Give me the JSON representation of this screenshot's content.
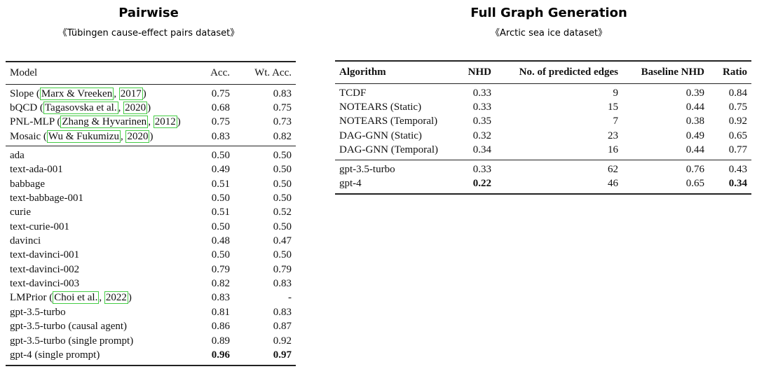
{
  "left": {
    "title": "Pairwise",
    "subtitle": "《Tübingen cause-effect pairs dataset》",
    "header": [
      "Model",
      "Acc.",
      "Wt. Acc."
    ],
    "header_bold": false,
    "groups": [
      [
        [
          [
            {
              "text": "Slope ("
            },
            {
              "text": "Marx & Vreeken",
              "cite": true
            },
            {
              "text": ", "
            },
            {
              "text": "2017",
              "cite": true
            },
            {
              "text": ")"
            }
          ],
          "0.75",
          "0.83"
        ],
        [
          [
            {
              "text": "bQCD ("
            },
            {
              "text": "Tagasovska et al.",
              "cite": true
            },
            {
              "text": ", "
            },
            {
              "text": "2020",
              "cite": true
            },
            {
              "text": ")"
            }
          ],
          "0.68",
          "0.75"
        ],
        [
          [
            {
              "text": "PNL-MLP ("
            },
            {
              "text": "Zhang & Hyvarinen",
              "cite": true
            },
            {
              "text": ", "
            },
            {
              "text": "2012",
              "cite": true
            },
            {
              "text": ")"
            }
          ],
          "0.75",
          "0.73"
        ],
        [
          [
            {
              "text": "Mosaic ("
            },
            {
              "text": "Wu & Fukumizu",
              "cite": true
            },
            {
              "text": ", "
            },
            {
              "text": "2020",
              "cite": true
            },
            {
              "text": ")"
            }
          ],
          "0.83",
          "0.82"
        ]
      ],
      [
        [
          "ada",
          "0.50",
          "0.50"
        ],
        [
          "text-ada-001",
          "0.49",
          "0.50"
        ],
        [
          "babbage",
          "0.51",
          "0.50"
        ],
        [
          "text-babbage-001",
          "0.50",
          "0.50"
        ],
        [
          "curie",
          "0.51",
          "0.52"
        ],
        [
          "text-curie-001",
          "0.50",
          "0.50"
        ],
        [
          "davinci",
          "0.48",
          "0.47"
        ],
        [
          "text-davinci-001",
          "0.50",
          "0.50"
        ],
        [
          "text-davinci-002",
          "0.79",
          "0.79"
        ],
        [
          "text-davinci-003",
          "0.82",
          "0.83"
        ],
        [
          [
            {
              "text": "LMPrior ("
            },
            {
              "text": "Choi et al.",
              "cite": true
            },
            {
              "text": ", "
            },
            {
              "text": "2022",
              "cite": true
            },
            {
              "text": ")"
            }
          ],
          "0.83",
          "-"
        ],
        [
          "gpt-3.5-turbo",
          "0.81",
          "0.83"
        ],
        [
          "gpt-3.5-turbo (causal agent)",
          "0.86",
          "0.87"
        ],
        [
          "gpt-3.5-turbo (single prompt)",
          "0.89",
          "0.92"
        ],
        [
          "gpt-4 (single prompt)",
          {
            "text": "0.96",
            "bold": true
          },
          {
            "text": "0.97",
            "bold": true
          }
        ]
      ]
    ]
  },
  "right": {
    "title": "Full Graph Generation",
    "subtitle": "《Arctic sea ice dataset》",
    "header": [
      "Algorithm",
      "NHD",
      "No. of predicted edges",
      "Baseline NHD",
      "Ratio"
    ],
    "header_bold": true,
    "groups": [
      [
        [
          "TCDF",
          "0.33",
          "9",
          "0.39",
          "0.84"
        ],
        [
          "NOTEARS (Static)",
          "0.33",
          "15",
          "0.44",
          "0.75"
        ],
        [
          "NOTEARS (Temporal)",
          "0.35",
          "7",
          "0.38",
          "0.92"
        ],
        [
          "DAG-GNN (Static)",
          "0.32",
          "23",
          "0.49",
          "0.65"
        ],
        [
          "DAG-GNN (Temporal)",
          "0.34",
          "16",
          "0.44",
          "0.77"
        ]
      ],
      [
        [
          "gpt-3.5-turbo",
          "0.33",
          "62",
          "0.76",
          "0.43"
        ],
        [
          "gpt-4",
          {
            "text": "0.22",
            "bold": true
          },
          "46",
          "0.65",
          {
            "text": "0.34",
            "bold": true
          }
        ]
      ]
    ]
  }
}
